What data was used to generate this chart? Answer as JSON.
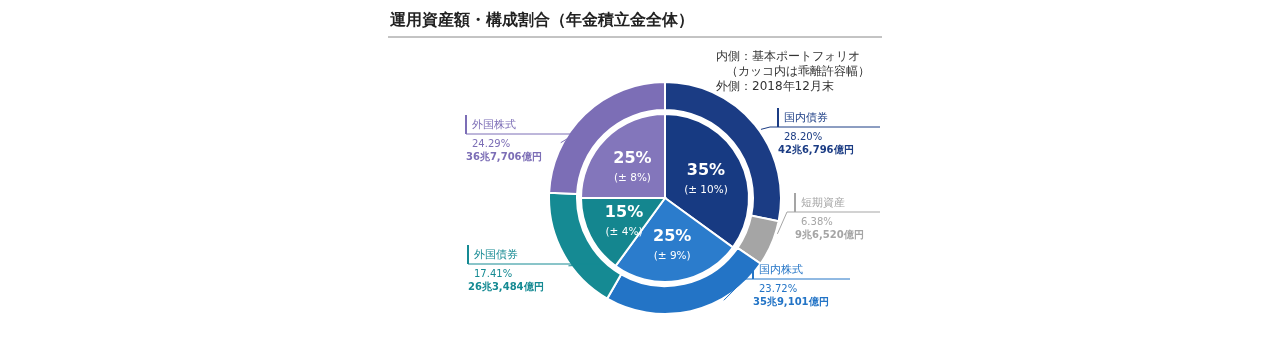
{
  "chart_data": [
    {
      "type": "donut",
      "title": "運用資産額・構成割合（年金積立金全体）",
      "categories": [
        "国内債券",
        "短期資産",
        "国内株式",
        "外国債券",
        "外国株式"
      ],
      "values": [
        28.2,
        6.38,
        23.72,
        17.41,
        24.29
      ],
      "colors": [
        "#1b3c84",
        "#a5a5a5",
        "#2374c6",
        "#158a93",
        "#7c6eb6"
      ],
      "value_labels": [
        "28.20%",
        "6.38%",
        "23.72%",
        "17.41%",
        "24.29%"
      ],
      "legend": "right",
      "annotations": [
        "内側：基本ポートフォリオ",
        "（カッコ内は乖離許容幅）",
        "外側：2018年12月末",
        "42兆6,796億円",
        "9兆6,520億円",
        "35兆9,101億円",
        "26兆3,484億円",
        "36兆7,706億円"
      ]
    },
    {
      "type": "pie",
      "categories": [
        null,
        null,
        null,
        null
      ],
      "values": [
        35,
        25,
        15,
        25
      ],
      "colors": [
        "#173a82",
        "#2b7ccc",
        "#14868f",
        "#8376bb"
      ],
      "value_labels": [
        "35%",
        "25%",
        "15%",
        "25%"
      ],
      "annotations": [
        "(± 10%)",
        "(± 9%)",
        "(± 4%)",
        "(± 8%)"
      ]
    }
  ]
}
